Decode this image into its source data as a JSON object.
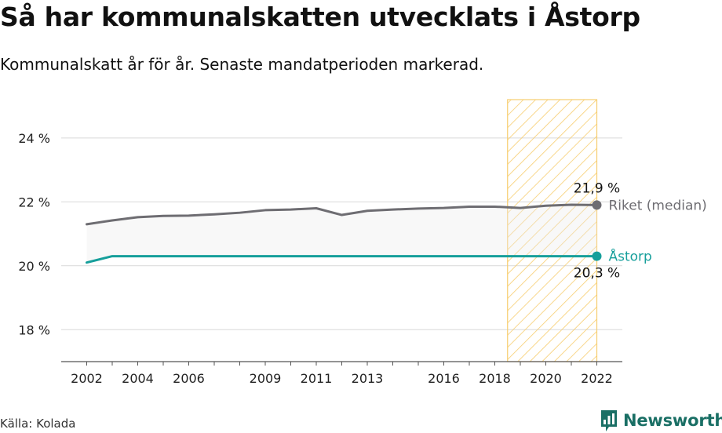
{
  "title": "Så har kommunalskatten utvecklats i Åstorp",
  "subtitle": "Kommunalskatt år för år. Senaste mandatperioden markerad.",
  "source": "Källa: Kolada",
  "brand": {
    "name": "Newsworthy",
    "icon": "speech-bubble-bar-chart-icon",
    "color": "#1a6f65"
  },
  "chart_data": {
    "type": "line",
    "x": [
      2002,
      2003,
      2004,
      2005,
      2006,
      2007,
      2008,
      2009,
      2010,
      2011,
      2012,
      2013,
      2014,
      2015,
      2016,
      2017,
      2018,
      2019,
      2020,
      2021,
      2022
    ],
    "x_ticks": [
      2002,
      2004,
      2006,
      2009,
      2011,
      2013,
      2016,
      2018,
      2020,
      2022
    ],
    "y_ticks": [
      18,
      20,
      22,
      24
    ],
    "ylim": [
      17,
      25.2
    ],
    "xlim": [
      2001,
      2023
    ],
    "y_tick_suffix": " %",
    "grid": true,
    "highlight_period": [
      2018.5,
      2022
    ],
    "series": [
      {
        "name": "Riket (median)",
        "color": "#6e6d72",
        "values": [
          21.3,
          21.42,
          21.52,
          21.56,
          21.57,
          21.61,
          21.66,
          21.74,
          21.76,
          21.8,
          21.59,
          21.72,
          21.76,
          21.79,
          21.81,
          21.85,
          21.85,
          21.81,
          21.88,
          21.91,
          21.9
        ],
        "end_label": "21,9 %"
      },
      {
        "name": "Åstorp",
        "color": "#169f9b",
        "values": [
          20.1,
          20.3,
          20.3,
          20.3,
          20.3,
          20.3,
          20.3,
          20.3,
          20.3,
          20.3,
          20.3,
          20.3,
          20.3,
          20.3,
          20.3,
          20.3,
          20.3,
          20.3,
          20.3,
          20.3,
          20.3
        ],
        "end_label": "20,3 %"
      }
    ],
    "highlight_color": "#f7cd6e"
  }
}
